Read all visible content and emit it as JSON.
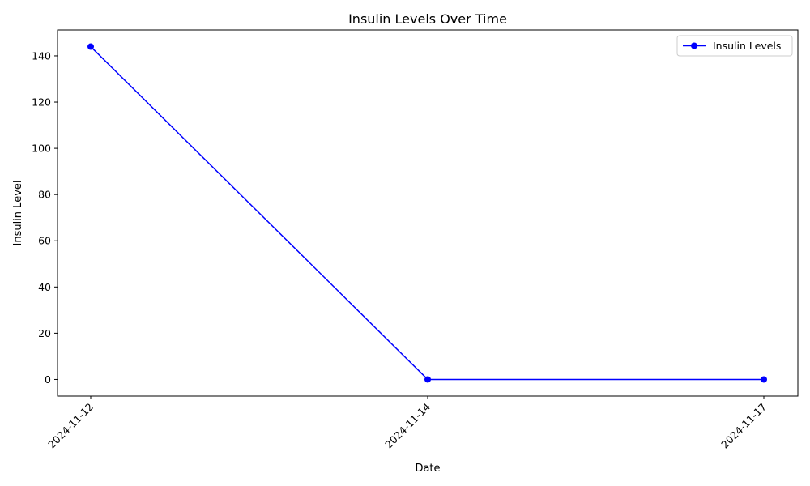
{
  "chart_data": {
    "type": "line",
    "title": "Insulin Levels Over Time",
    "xlabel": "Date",
    "ylabel": "Insulin Level",
    "x": [
      "2024-11-12",
      "2024-11-14",
      "2024-11-17"
    ],
    "series": [
      {
        "name": "Insulin Levels",
        "color": "#0000ff",
        "values": [
          144,
          0,
          0
        ],
        "marker": "circle"
      }
    ],
    "yticks": [
      0,
      20,
      40,
      60,
      80,
      100,
      120,
      140
    ],
    "ylim": [
      -7.2,
      151.2
    ],
    "grid": false,
    "legend": "top-right"
  }
}
